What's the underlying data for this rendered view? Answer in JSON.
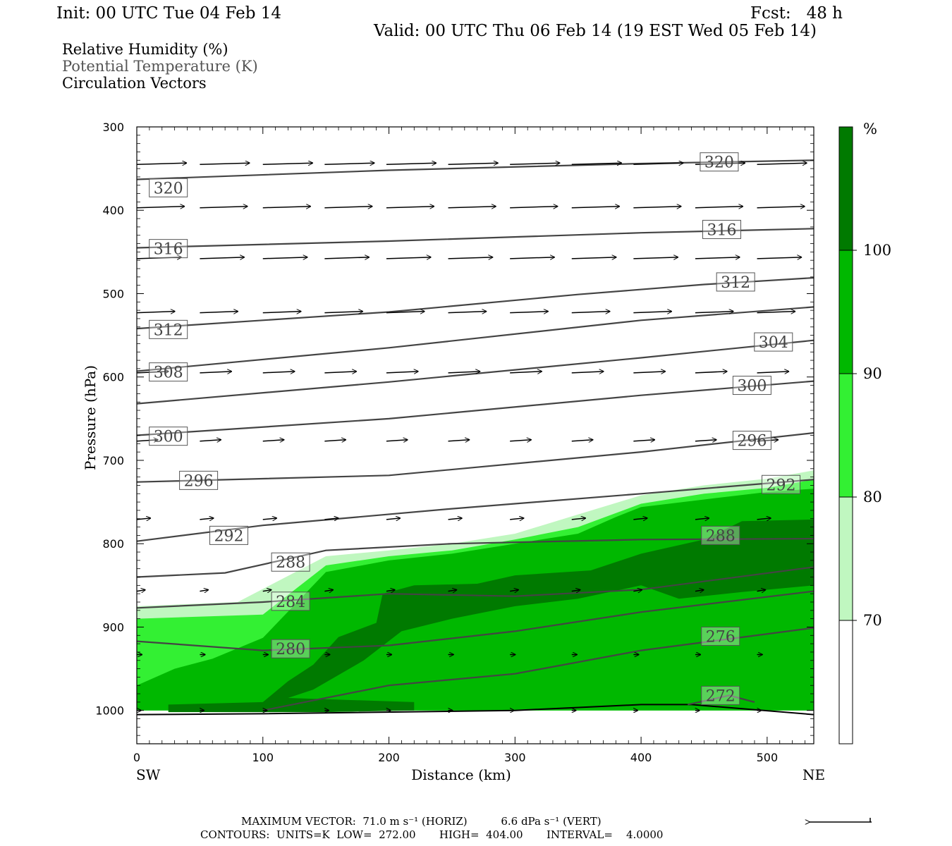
{
  "header": {
    "init": "Init: 00 UTC Tue 04 Feb 14",
    "fcst": "Fcst:   48 h",
    "valid": "Valid: 00 UTC Thu 06 Feb 14 (19 EST Wed 05 Feb 14)",
    "fields": [
      "Relative Humidity (%)",
      "Potential Temperature (K)",
      "Circulation Vectors"
    ]
  },
  "footer": {
    "max_vector": "MAXIMUM VECTOR:  71.0 m s⁻¹ (HORIZ)          6.6 dPa s⁻¹ (VERT)",
    "contours": "CONTOURS:  UNITS=K  LOW=  272.00       HIGH=  404.00       INTERVAL=    4.0000"
  },
  "colors": {
    "rh_70_80": "#c0f7c0",
    "rh_80_90": "#33f033",
    "rh_90_100": "#00b800",
    "rh_100": "#007a00",
    "contour": "#444444",
    "axis": "#000000"
  },
  "chart_data": {
    "type": "cross-section",
    "xlabel": "Distance (km)",
    "ylabel": "Pressure (hPa)",
    "xlim": [
      0,
      537
    ],
    "ylim": [
      1040,
      300
    ],
    "x_ticks": [
      0,
      100,
      200,
      300,
      400,
      500
    ],
    "y_ticks": [
      300,
      400,
      500,
      600,
      700,
      800,
      900,
      1000
    ],
    "x_end_labels": {
      "left": "SW",
      "right": "NE"
    },
    "colorbar": {
      "unit": "%",
      "levels": [
        70,
        80,
        90,
        100
      ]
    },
    "theta_contours": [
      {
        "label": "320",
        "points": [
          [
            0,
            363
          ],
          [
            200,
            352
          ],
          [
            400,
            344
          ],
          [
            537,
            340
          ]
        ],
        "label_at": [
          [
            25,
            373
          ],
          [
            462,
            342
          ]
        ]
      },
      {
        "label": "316",
        "points": [
          [
            0,
            445
          ],
          [
            200,
            437
          ],
          [
            400,
            427
          ],
          [
            537,
            422
          ]
        ],
        "label_at": [
          [
            25,
            446
          ],
          [
            464,
            423
          ]
        ]
      },
      {
        "label": "312",
        "points": [
          [
            0,
            542
          ],
          [
            200,
            522
          ],
          [
            350,
            501
          ],
          [
            450,
            489
          ],
          [
            537,
            481
          ]
        ],
        "label_at": [
          [
            25,
            543
          ],
          [
            475,
            486
          ]
        ]
      },
      {
        "label": "308",
        "points": [
          [
            0,
            593
          ],
          [
            200,
            565
          ],
          [
            400,
            532
          ],
          [
            537,
            516
          ]
        ],
        "label_at": [
          [
            25,
            594
          ]
        ]
      },
      {
        "label": "304",
        "points": [
          [
            0,
            632
          ],
          [
            200,
            606
          ],
          [
            400,
            577
          ],
          [
            537,
            556
          ]
        ],
        "label_at": [
          [
            505,
            558
          ]
        ]
      },
      {
        "label": "300",
        "points": [
          [
            0,
            670
          ],
          [
            200,
            650
          ],
          [
            400,
            622
          ],
          [
            537,
            605
          ]
        ],
        "label_at": [
          [
            25,
            671
          ],
          [
            488,
            610
          ]
        ]
      },
      {
        "label": "296",
        "points": [
          [
            0,
            726
          ],
          [
            200,
            718
          ],
          [
            400,
            690
          ],
          [
            537,
            667
          ]
        ],
        "label_at": [
          [
            49,
            724
          ],
          [
            488,
            676
          ]
        ]
      },
      {
        "label": "292",
        "points": [
          [
            0,
            797
          ],
          [
            100,
            778
          ],
          [
            250,
            758
          ],
          [
            400,
            740
          ],
          [
            537,
            723
          ]
        ],
        "label_at": [
          [
            73,
            790
          ],
          [
            511,
            729
          ]
        ]
      },
      {
        "label": "288",
        "points": [
          [
            0,
            840
          ],
          [
            70,
            835
          ],
          [
            150,
            808
          ],
          [
            250,
            800
          ],
          [
            400,
            795
          ],
          [
            537,
            794
          ]
        ],
        "label_at": [
          [
            122,
            822
          ],
          [
            463,
            790
          ]
        ]
      },
      {
        "label": "284",
        "points": [
          [
            0,
            877
          ],
          [
            100,
            870
          ],
          [
            200,
            860
          ],
          [
            300,
            863
          ],
          [
            400,
            855
          ],
          [
            537,
            828
          ]
        ],
        "label_at": [
          [
            122,
            869
          ]
        ]
      },
      {
        "label": "280",
        "points": [
          [
            0,
            917
          ],
          [
            100,
            928
          ],
          [
            200,
            922
          ],
          [
            300,
            905
          ],
          [
            400,
            882
          ],
          [
            537,
            857
          ]
        ],
        "label_at": [
          [
            122,
            926
          ]
        ]
      },
      {
        "label": "276",
        "points": [
          [
            100,
            1000
          ],
          [
            200,
            970
          ],
          [
            300,
            956
          ],
          [
            400,
            928
          ],
          [
            537,
            901
          ]
        ],
        "label_at": [
          [
            463,
            911
          ]
        ]
      },
      {
        "label": "272",
        "points": [
          [
            437,
            993
          ],
          [
            470,
            982
          ],
          [
            490,
            990
          ]
        ],
        "label_at": [
          [
            463,
            982
          ]
        ]
      }
    ],
    "rh_regions": [
      {
        "level": "70-80",
        "points": [
          [
            0,
            1000
          ],
          [
            0,
            875
          ],
          [
            80,
            870
          ],
          [
            150,
            815
          ],
          [
            200,
            808
          ],
          [
            250,
            800
          ],
          [
            300,
            788
          ],
          [
            350,
            765
          ],
          [
            400,
            742
          ],
          [
            450,
            730
          ],
          [
            500,
            722
          ],
          [
            537,
            712
          ],
          [
            537,
            1000
          ]
        ]
      },
      {
        "level": "80-90",
        "points": [
          [
            0,
            1000
          ],
          [
            0,
            890
          ],
          [
            100,
            885
          ],
          [
            150,
            826
          ],
          [
            200,
            815
          ],
          [
            250,
            808
          ],
          [
            300,
            795
          ],
          [
            350,
            780
          ],
          [
            400,
            752
          ],
          [
            450,
            740
          ],
          [
            500,
            733
          ],
          [
            537,
            723
          ],
          [
            537,
            1000
          ]
        ]
      },
      {
        "level": "90-100",
        "points": [
          [
            0,
            1000
          ],
          [
            0,
            970
          ],
          [
            30,
            950
          ],
          [
            60,
            938
          ],
          [
            100,
            913
          ],
          [
            150,
            834
          ],
          [
            200,
            820
          ],
          [
            250,
            812
          ],
          [
            300,
            800
          ],
          [
            350,
            788
          ],
          [
            380,
            768
          ],
          [
            400,
            756
          ],
          [
            450,
            747
          ],
          [
            500,
            738
          ],
          [
            537,
            734
          ],
          [
            537,
            1000
          ]
        ]
      },
      {
        "level": "100",
        "points": [
          [
            25,
            1000
          ],
          [
            25,
            993
          ],
          [
            100,
            990
          ],
          [
            120,
            965
          ],
          [
            140,
            945
          ],
          [
            160,
            912
          ],
          [
            190,
            895
          ],
          [
            195,
            860
          ],
          [
            220,
            850
          ],
          [
            270,
            848
          ],
          [
            300,
            838
          ],
          [
            360,
            832
          ],
          [
            400,
            812
          ],
          [
            450,
            795
          ],
          [
            480,
            773
          ],
          [
            537,
            771
          ],
          [
            537,
            850
          ],
          [
            480,
            858
          ],
          [
            430,
            866
          ],
          [
            400,
            850
          ],
          [
            350,
            866
          ],
          [
            300,
            875
          ],
          [
            250,
            890
          ],
          [
            210,
            905
          ],
          [
            180,
            940
          ],
          [
            140,
            975
          ],
          [
            120,
            985
          ],
          [
            220,
            990
          ],
          [
            220,
            1000
          ],
          [
            150,
            1002
          ],
          [
            25,
            1002
          ]
        ]
      }
    ],
    "vector_rows": [
      {
        "p": 345,
        "len": 47
      },
      {
        "p": 397,
        "len": 45
      },
      {
        "p": 458,
        "len": 42
      },
      {
        "p": 523,
        "len": 36
      },
      {
        "p": 595,
        "len": 30
      },
      {
        "p": 677,
        "len": 20
      },
      {
        "p": 771,
        "len": 13
      },
      {
        "p": 857,
        "len": 8
      },
      {
        "p": 933,
        "len": 5
      },
      {
        "p": 1000,
        "len": 4
      }
    ],
    "vector_x": [
      0,
      50,
      100,
      149,
      198,
      247,
      296,
      345,
      394,
      443,
      492,
      537
    ]
  }
}
